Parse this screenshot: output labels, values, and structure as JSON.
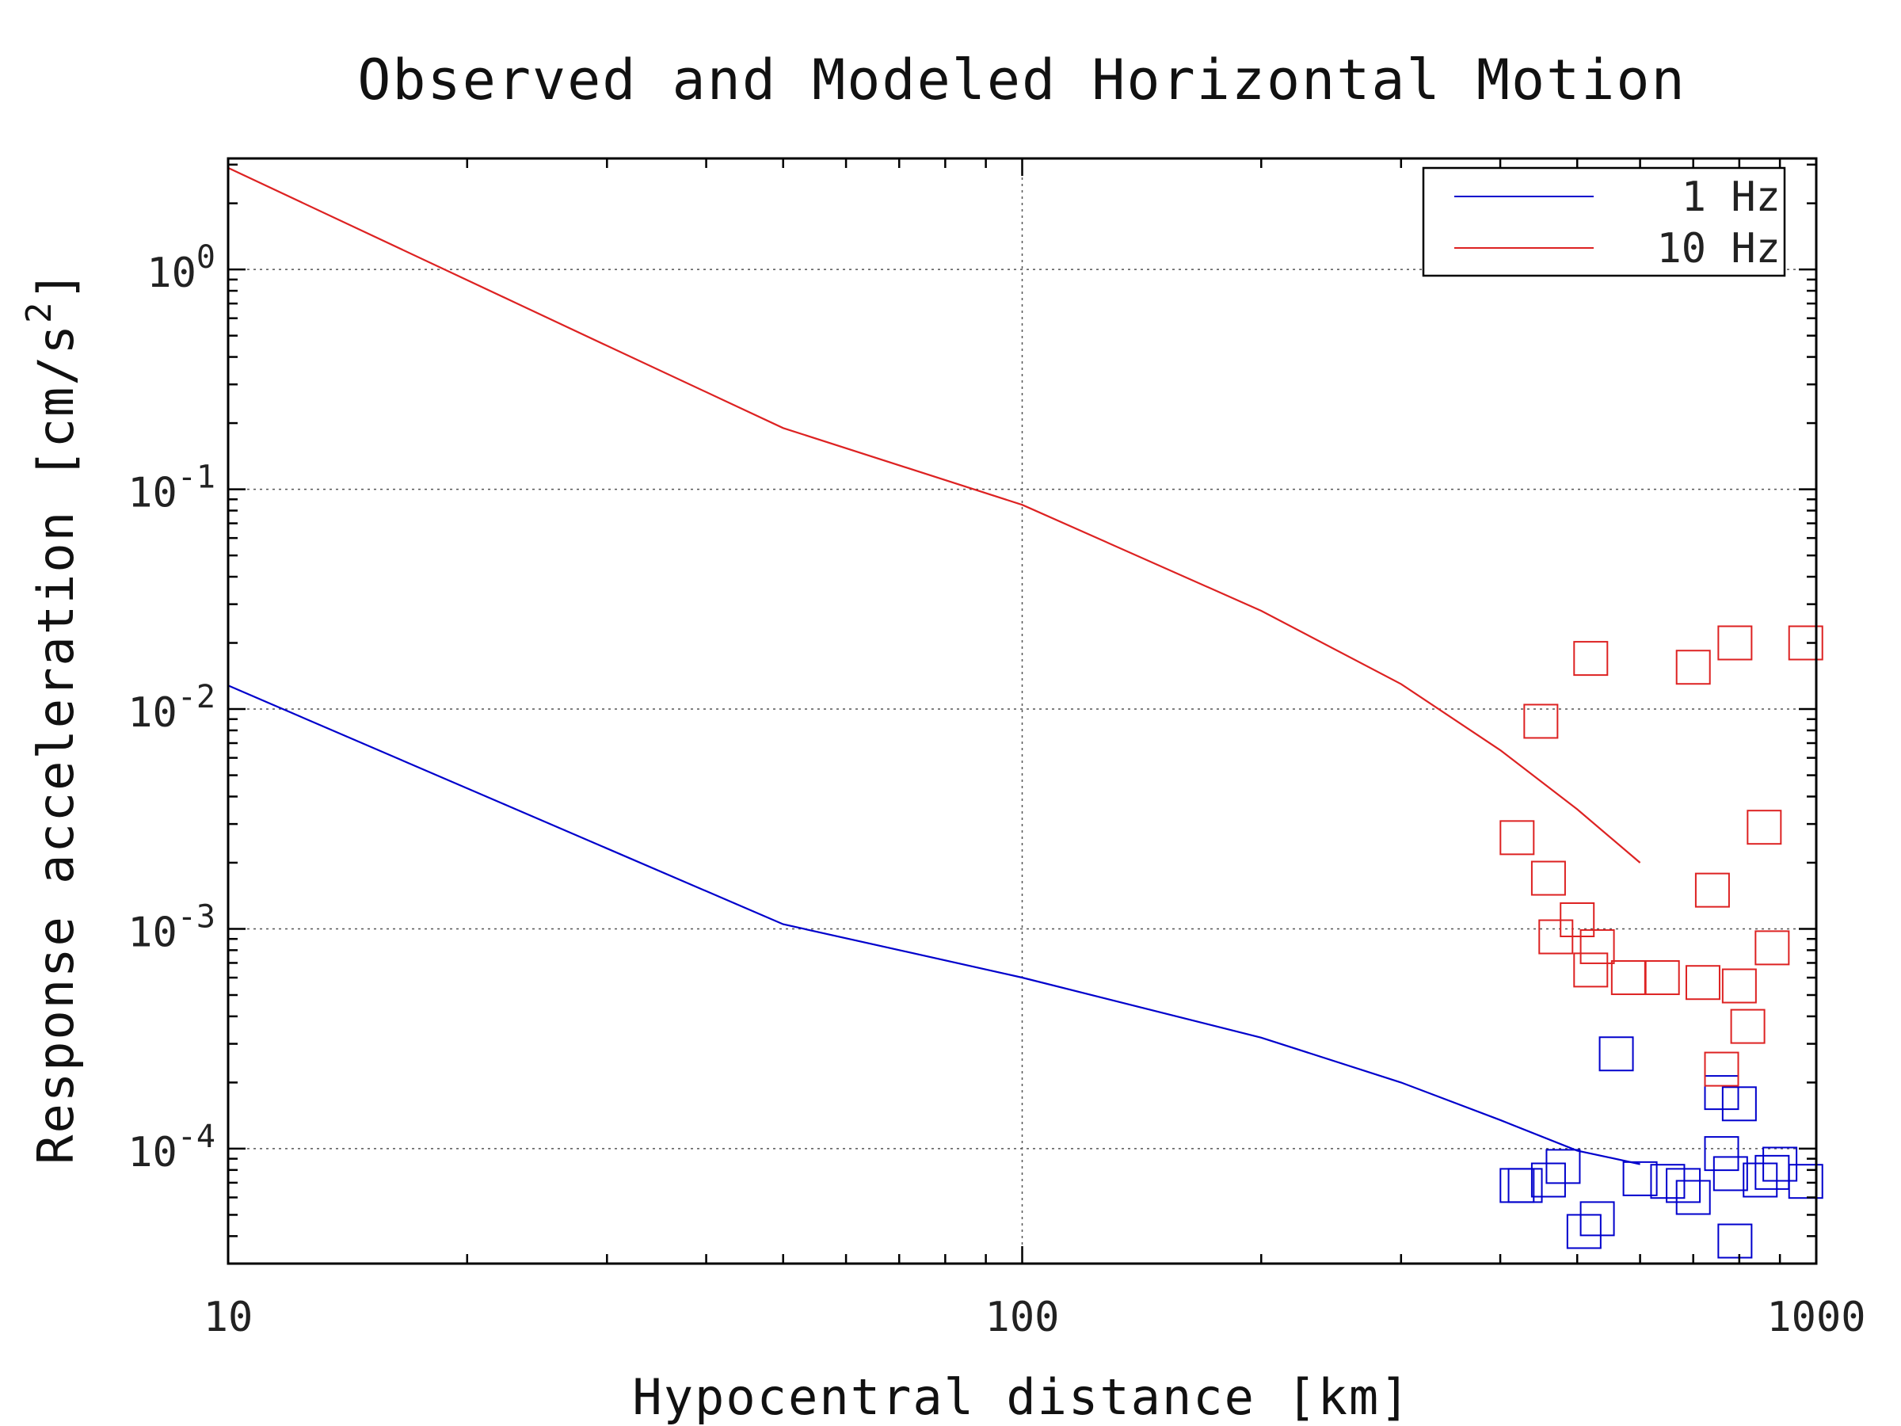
{
  "chart_data": {
    "type": "scatter",
    "title": "Observed and Modeled Horizontal Motion",
    "xlabel": "Hypocentral distance [km]",
    "ylabel": "Response acceleration [cm/s^2]",
    "ylabel_parts": {
      "main": "Response acceleration [cm/s",
      "sup": "2",
      "end": "]"
    },
    "xscale": "log",
    "yscale": "log",
    "xlim": [
      10,
      1000
    ],
    "ylim": [
      3e-05,
      3.2
    ],
    "x_ticks": [
      {
        "value": 10,
        "label": "10"
      },
      {
        "value": 100,
        "label": "100"
      },
      {
        "value": 1000,
        "label": "1000"
      }
    ],
    "y_ticks": [
      {
        "value": 1,
        "base": "10",
        "exp": "0"
      },
      {
        "value": 0.1,
        "base": "10",
        "exp": "-1"
      },
      {
        "value": 0.01,
        "base": "10",
        "exp": "-2"
      },
      {
        "value": 0.001,
        "base": "10",
        "exp": "-3"
      },
      {
        "value": 0.0001,
        "base": "10",
        "exp": "-4"
      }
    ],
    "grid": true,
    "legend_position": "top-right",
    "series": [
      {
        "name": "1 Hz",
        "color": "#0000cc",
        "line": {
          "x": [
            10,
            50,
            100,
            200,
            300,
            400,
            500,
            600
          ],
          "y": [
            0.0128,
            0.00105,
            0.0006,
            0.00032,
            0.0002,
            0.000135,
            9.8e-05,
            8.5e-05
          ]
        },
        "points": {
          "x": [
            420,
            430,
            460,
            480,
            510,
            530,
            560,
            600,
            650,
            680,
            700,
            760,
            760,
            780,
            790,
            800,
            850,
            880,
            900,
            970
          ],
          "y": [
            6.8e-05,
            6.8e-05,
            7.2e-05,
            8.3e-05,
            4.2e-05,
            4.8e-05,
            0.00027,
            7.3e-05,
            7.1e-05,
            6.8e-05,
            6e-05,
            0.00018,
            9.5e-05,
            7.7e-05,
            3.8e-05,
            0.00016,
            7.2e-05,
            7.8e-05,
            8.5e-05,
            7.1e-05
          ]
        }
      },
      {
        "name": "10 Hz",
        "color": "#dd2222",
        "line": {
          "x": [
            10,
            30,
            50,
            100,
            200,
            300,
            400,
            500,
            600
          ],
          "y": [
            2.9,
            0.45,
            0.19,
            0.085,
            0.028,
            0.013,
            0.0065,
            0.0035,
            0.002
          ]
        },
        "points": {
          "x": [
            420,
            450,
            460,
            470,
            500,
            520,
            520,
            530,
            580,
            640,
            700,
            720,
            740,
            760,
            790,
            800,
            820,
            860,
            880,
            970
          ],
          "y": [
            0.0026,
            0.0088,
            0.0017,
            0.00092,
            0.0011,
            0.017,
            0.00065,
            0.00083,
            0.0006,
            0.0006,
            0.0155,
            0.00057,
            0.0015,
            0.00023,
            0.02,
            0.00055,
            0.00036,
            0.0029,
            0.00082,
            0.02
          ]
        }
      }
    ]
  }
}
